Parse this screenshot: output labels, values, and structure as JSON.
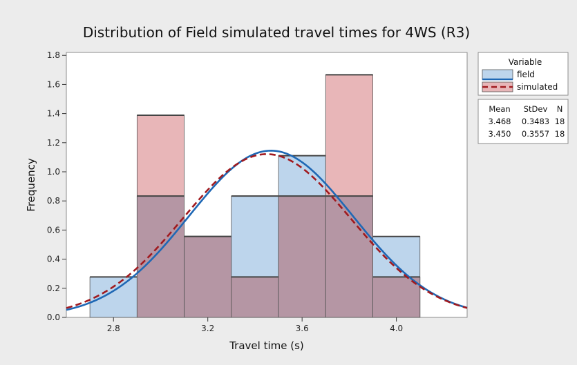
{
  "chart_data": {
    "type": "bar",
    "title": "Distribution of Field simulated travel times for 4WS (R3)",
    "xlabel": "Travel time (s)",
    "ylabel": "Frequency",
    "xlim": [
      2.6,
      4.3
    ],
    "ylim": [
      0,
      1.82
    ],
    "xticks": [
      "2.8",
      "3.2",
      "3.6",
      "4.0"
    ],
    "yticks": [
      "0.0",
      "0.2",
      "0.4",
      "0.6",
      "0.8",
      "1.0",
      "1.2",
      "1.4",
      "1.6",
      "1.8"
    ],
    "bin_edges": [
      2.7,
      2.9,
      3.1,
      3.3,
      3.5,
      3.7,
      3.9,
      4.1
    ],
    "grid": false,
    "legend_position": "right",
    "series": [
      {
        "name": "field",
        "fill_color": "#bdd5ec",
        "line_color": "#1f68b5",
        "line_style": "solid",
        "values": [
          0.2778,
          0.8333,
          0.5556,
          0.8333,
          1.1111,
          0.8333,
          0.5556
        ],
        "mean": 3.468,
        "stdev": 0.3483,
        "n": 18
      },
      {
        "name": "simulated",
        "fill_color": "#e8b6b8",
        "line_color": "#a01a1f",
        "line_style": "dashed",
        "values": [
          0.0,
          1.3889,
          0.5556,
          0.2778,
          0.8333,
          1.6667,
          0.2778
        ],
        "mean": 3.45,
        "stdev": 0.3557,
        "n": 18
      }
    ],
    "overlap_color": "#b596a4",
    "legend": {
      "title": "Variable",
      "entries": [
        "field",
        "simulated"
      ]
    },
    "stats_table": {
      "headers": [
        "Mean",
        "StDev",
        "N"
      ],
      "rows": [
        [
          "3.468",
          "0.3483",
          "18"
        ],
        [
          "3.450",
          "0.3557",
          "18"
        ]
      ]
    }
  }
}
